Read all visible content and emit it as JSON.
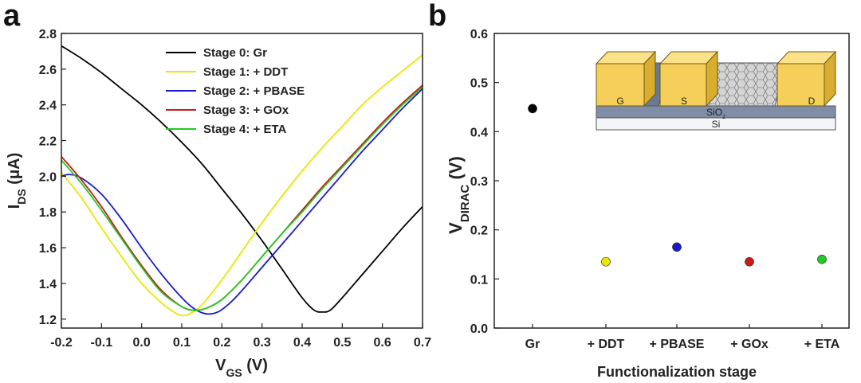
{
  "chart_data": [
    {
      "panel": "a",
      "type": "line",
      "xlabel_main": "V",
      "xlabel_sub": "GS",
      "xlabel_unit": " (V)",
      "ylabel_main": "I",
      "ylabel_sub": "DS",
      "ylabel_unit": " (μA)",
      "xlim": [
        -0.2,
        0.7
      ],
      "ylim": [
        1.15,
        2.8
      ],
      "xticks": [
        "-0.2",
        "-0.1",
        "0.0",
        "0.1",
        "0.2",
        "0.3",
        "0.4",
        "0.5",
        "0.6",
        "0.7"
      ],
      "yticks": [
        "1.2",
        "1.4",
        "1.6",
        "1.8",
        "2.0",
        "2.2",
        "2.4",
        "2.6",
        "2.8"
      ],
      "legend_position": "top-center",
      "series": [
        {
          "name": "Stage 0: Gr",
          "color": "#000000",
          "key": "s0",
          "x": [
            -0.2,
            -0.15,
            -0.1,
            -0.05,
            0,
            0.05,
            0.1,
            0.15,
            0.2,
            0.25,
            0.3,
            0.35,
            0.4,
            0.43,
            0.45,
            0.47,
            0.5,
            0.55,
            0.6,
            0.65,
            0.7
          ],
          "y": [
            2.73,
            2.66,
            2.58,
            2.49,
            2.4,
            2.3,
            2.19,
            2.07,
            1.93,
            1.79,
            1.64,
            1.48,
            1.32,
            1.25,
            1.24,
            1.25,
            1.32,
            1.45,
            1.58,
            1.71,
            1.83
          ]
        },
        {
          "name": "Stage 1: + DDT",
          "color": "#e8e800",
          "key": "s1",
          "x": [
            -0.2,
            -0.15,
            -0.1,
            -0.05,
            0,
            0.05,
            0.08,
            0.1,
            0.12,
            0.15,
            0.2,
            0.25,
            0.3,
            0.35,
            0.4,
            0.45,
            0.5,
            0.55,
            0.6,
            0.65,
            0.7
          ],
          "y": [
            2.02,
            1.88,
            1.71,
            1.55,
            1.4,
            1.29,
            1.24,
            1.22,
            1.23,
            1.28,
            1.42,
            1.58,
            1.74,
            1.89,
            2.03,
            2.16,
            2.28,
            2.4,
            2.5,
            2.59,
            2.68
          ]
        },
        {
          "name": "Stage 2: + PBASE",
          "color": "#1a1acc",
          "key": "s2",
          "x": [
            -0.2,
            -0.18,
            -0.15,
            -0.1,
            -0.05,
            0,
            0.05,
            0.1,
            0.13,
            0.16,
            0.19,
            0.22,
            0.25,
            0.3,
            0.35,
            0.4,
            0.45,
            0.5,
            0.55,
            0.6,
            0.65,
            0.7
          ],
          "y": [
            2.0,
            2.01,
            1.99,
            1.9,
            1.76,
            1.6,
            1.45,
            1.32,
            1.26,
            1.23,
            1.24,
            1.29,
            1.36,
            1.49,
            1.62,
            1.75,
            1.88,
            2.01,
            2.14,
            2.26,
            2.38,
            2.49
          ]
        },
        {
          "name": "Stage 3: + GOx",
          "color": "#cc1a1a",
          "key": "s3",
          "x": [
            -0.2,
            -0.15,
            -0.1,
            -0.05,
            0,
            0.05,
            0.1,
            0.13,
            0.16,
            0.2,
            0.25,
            0.3,
            0.35,
            0.4,
            0.45,
            0.5,
            0.55,
            0.6,
            0.65,
            0.7
          ],
          "y": [
            2.11,
            1.98,
            1.83,
            1.66,
            1.5,
            1.36,
            1.27,
            1.25,
            1.26,
            1.31,
            1.42,
            1.55,
            1.68,
            1.81,
            1.94,
            2.06,
            2.18,
            2.3,
            2.41,
            2.51
          ]
        },
        {
          "name": "Stage 4: + ETA",
          "color": "#22cc22",
          "key": "s4",
          "x": [
            -0.2,
            -0.15,
            -0.1,
            -0.05,
            0,
            0.05,
            0.1,
            0.13,
            0.16,
            0.2,
            0.25,
            0.3,
            0.35,
            0.4,
            0.45,
            0.5,
            0.55,
            0.6,
            0.65,
            0.7
          ],
          "y": [
            2.09,
            1.96,
            1.81,
            1.65,
            1.49,
            1.35,
            1.27,
            1.25,
            1.26,
            1.31,
            1.42,
            1.55,
            1.68,
            1.8,
            1.93,
            2.05,
            2.17,
            2.29,
            2.4,
            2.5
          ]
        }
      ]
    },
    {
      "panel": "b",
      "type": "scatter",
      "xlabel": "Functionalization stage",
      "ylabel_main": "V",
      "ylabel_sub": "DIRAC",
      "ylabel_unit": " (V)",
      "ylim": [
        0.0,
        0.6
      ],
      "yticks": [
        "0.0",
        "0.1",
        "0.2",
        "0.3",
        "0.4",
        "0.5",
        "0.6"
      ],
      "categories": [
        "Gr",
        "+ DDT",
        "+ PBASE",
        "+ GOx",
        "+ ETA"
      ],
      "values": [
        0.447,
        0.135,
        0.165,
        0.135,
        0.14
      ],
      "colors": [
        "#000000",
        "#e8e800",
        "#1a1acc",
        "#cc1a1a",
        "#22cc22"
      ],
      "inset": {
        "labels": {
          "gate": "G",
          "source": "S",
          "drain": "D",
          "oxide": "SiO",
          "oxide_sub": "2",
          "substrate": "Si"
        },
        "colors": {
          "electrode": "#f5cf5a",
          "electrode_top": "#fbe289",
          "oxide": "#7f8ea6",
          "substrate": "#f4f5f8",
          "graphene": "#c8c8c8"
        }
      }
    }
  ]
}
